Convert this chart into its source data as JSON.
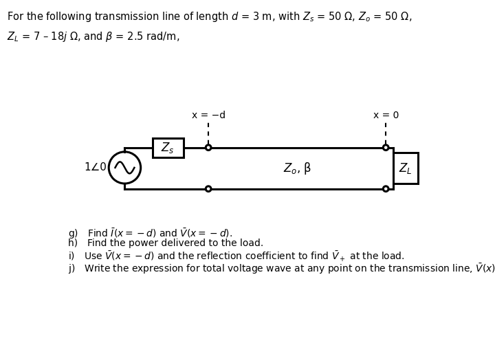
{
  "title_line1": "For the following transmission line of length $d$ = 3 m, with $Z_s$ = 50 Ω, $Z_o$ = 50 Ω,",
  "title_line2": "$Z_L$ = 7 – 18$j$ Ω, and $\\beta$ = 2.5 rad/m,",
  "label_x_neg_d": "x = −d",
  "label_x_0": "x = 0",
  "label_Zs": "$Z_s$",
  "label_Zo_beta": "$Z_o$, β",
  "label_ZL": "$Z_L$",
  "label_source": "1∠0",
  "items_g": "g) Find $\\bar{I}(x = -d)$ and $\\bar{V}(x = -d)$.",
  "items_h": "h) Find the power delivered to the load.",
  "items_i": "i) Use $\\bar{V}(x = -d)$ and the reflection coefficient to find $\\bar{V}_+$ at the load.",
  "items_j": "j) Write the expression for total voltage wave at any point on the transmission line, $\\bar{V}(x)$.",
  "bg_color": "#ffffff",
  "line_color": "#000000",
  "text_color": "#000000"
}
